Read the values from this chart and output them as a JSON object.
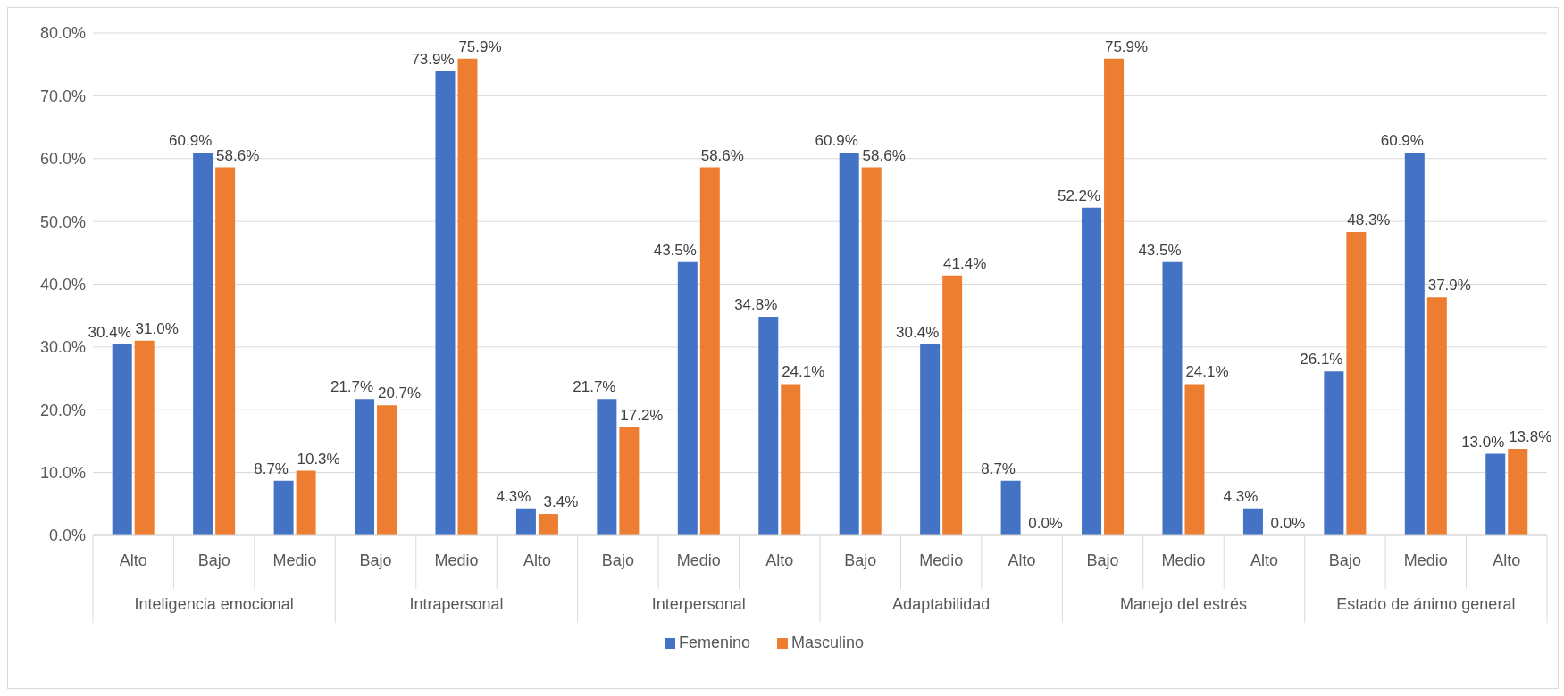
{
  "chart_data": {
    "type": "bar",
    "categories": [
      "Alto",
      "Bajo",
      "Medio",
      "Bajo",
      "Medio",
      "Alto",
      "Bajo",
      "Medio",
      "Alto",
      "Bajo",
      "Medio",
      "Alto",
      "Bajo",
      "Medio",
      "Alto",
      "Bajo",
      "Medio",
      "Alto"
    ],
    "annotations": [
      "Inteligencia emocional",
      "Intrapersonal",
      "Interpersonal",
      "Adaptabilidad",
      "Manejo del estrés",
      "Estado de ánimo general"
    ],
    "series": [
      {
        "name": "Femenino",
        "color": "#4472c4",
        "values": [
          30.4,
          60.9,
          8.7,
          21.7,
          73.9,
          4.3,
          21.7,
          43.5,
          34.8,
          60.9,
          30.4,
          8.7,
          52.2,
          43.5,
          4.3,
          26.1,
          60.9,
          13.0
        ],
        "value_labels": [
          "30.4%",
          "60.9%",
          "8.7%",
          "21.7%",
          "73.9%",
          "4.3%",
          "21.7%",
          "43.5%",
          "34.8%",
          "60.9%",
          "30.4%",
          "8.7%",
          "52.2%",
          "43.5%",
          "4.3%",
          "26.1%",
          "60.9%",
          "13.0%"
        ]
      },
      {
        "name": "Masculino",
        "color": "#ed7d31",
        "values": [
          31.0,
          58.6,
          10.3,
          20.7,
          75.9,
          3.4,
          17.2,
          58.6,
          24.1,
          58.6,
          41.4,
          0.0,
          75.9,
          24.1,
          0.0,
          48.3,
          37.9,
          13.8
        ],
        "value_labels": [
          "31.0%",
          "58.6%",
          "10.3%",
          "20.7%",
          "75.9%",
          "3.4%",
          "17.2%",
          "58.6%",
          "24.1%",
          "58.6%",
          "41.4%",
          "0.0%",
          "75.9%",
          "24.1%",
          "0.0%",
          "48.3%",
          "37.9%",
          "13.8%"
        ]
      }
    ],
    "ylim": [
      0,
      80
    ],
    "yticks": [
      {
        "value": 0,
        "label": "0.0%"
      },
      {
        "value": 10,
        "label": "10.0%"
      },
      {
        "value": 20,
        "label": "20.0%"
      },
      {
        "value": 30,
        "label": "30.0%"
      },
      {
        "value": 40,
        "label": "40.0%"
      },
      {
        "value": 50,
        "label": "50.0%"
      },
      {
        "value": 60,
        "label": "60.0%"
      },
      {
        "value": 70,
        "label": "70.0%"
      },
      {
        "value": 80,
        "label": "80.0%"
      }
    ],
    "grid": "y",
    "legend": "bottom"
  }
}
